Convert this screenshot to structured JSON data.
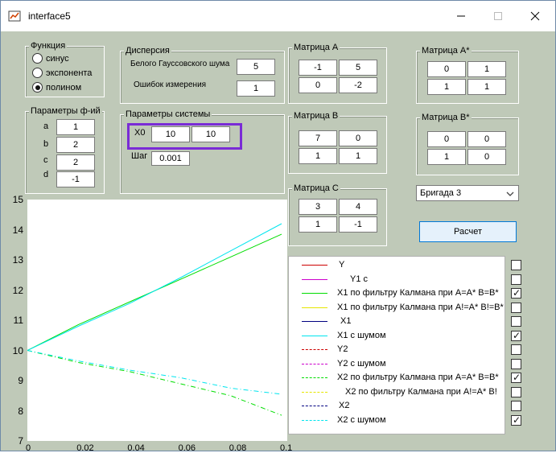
{
  "window": {
    "title": "interface5"
  },
  "function_panel": {
    "title": "Функция",
    "options": [
      {
        "label": "синус",
        "selected": false
      },
      {
        "label": "экспонента",
        "selected": false
      },
      {
        "label": "полином",
        "selected": true
      }
    ]
  },
  "dispersion_panel": {
    "title": "Дисперсия",
    "white_noise_label": "Белого Гауссовского шума",
    "white_noise_value": "5",
    "measure_error_label": "Ошибок измерения",
    "measure_error_value": "1"
  },
  "func_params_panel": {
    "title": "Параметры ф-ий",
    "params": [
      {
        "name": "a",
        "value": "1"
      },
      {
        "name": "b",
        "value": "2"
      },
      {
        "name": "c",
        "value": "2"
      },
      {
        "name": "d",
        "value": "-1"
      }
    ]
  },
  "system_params_panel": {
    "title": "Параметры системы",
    "x0_label": "X0",
    "x0_values": [
      "10",
      "10"
    ],
    "step_label": "Шаг",
    "step_value": "0.001"
  },
  "matrix_a": {
    "title": "Матрица A",
    "cells": [
      "-1",
      "5",
      "0",
      "-2"
    ]
  },
  "matrix_b": {
    "title": "Матрица B",
    "cells": [
      "7",
      "0",
      "1",
      "1"
    ]
  },
  "matrix_c": {
    "title": "Матрица C",
    "cells": [
      "3",
      "4",
      "1",
      "-1"
    ]
  },
  "matrix_a_star": {
    "title": "Матрица A*",
    "cells": [
      "0",
      "1",
      "1",
      "1"
    ]
  },
  "matrix_b_star": {
    "title": "Матрица B*",
    "cells": [
      "0",
      "0",
      "1",
      "0"
    ]
  },
  "brigade_select": {
    "value": "Бригада 3"
  },
  "calc_button": {
    "label": "Расчет"
  },
  "legend": [
    {
      "label": "Y",
      "color": "#cc0000",
      "style": "solid",
      "checked": false
    },
    {
      "label": "Y1 c",
      "color": "#cc00cc",
      "style": "solid",
      "checked": false
    },
    {
      "label": "X1 по фильтру Калмана при A=A* B=B*",
      "color": "#00dd00",
      "style": "solid",
      "checked": true
    },
    {
      "label": "X1 по фильтру Калмана при A!=A* B!=B*",
      "color": "#e6e600",
      "style": "solid",
      "checked": false
    },
    {
      "label": "X1",
      "color": "#000080",
      "style": "solid",
      "checked": false
    },
    {
      "label": "X1 с шумом",
      "color": "#00e5ee",
      "style": "solid",
      "checked": true
    },
    {
      "label": "Y2",
      "color": "#cc0000",
      "style": "dashed",
      "checked": false
    },
    {
      "label": "Y2 с шумом",
      "color": "#cc00cc",
      "style": "dashed",
      "checked": false
    },
    {
      "label": "X2 по фильтру Калмана при A=A* B=B*",
      "color": "#00dd00",
      "style": "dashed",
      "checked": true
    },
    {
      "label": "X2 по фильтру Калмана при A!=A* B!",
      "color": "#e6e600",
      "style": "dashed",
      "checked": false
    },
    {
      "label": "X2",
      "color": "#000080",
      "style": "dashed",
      "checked": false
    },
    {
      "label": "X2 с шумом",
      "color": "#00e5ee",
      "style": "dashed",
      "checked": true
    }
  ],
  "chart_data": {
    "type": "line",
    "ylim": [
      7,
      15
    ],
    "xlim": [
      0,
      0.1
    ],
    "yticks": [
      "15",
      "14",
      "13",
      "12",
      "11",
      "10",
      "9",
      "8",
      "7"
    ],
    "xticks": [
      "0",
      "0.02",
      "0.04",
      "0.06",
      "0.08",
      "0.1"
    ],
    "series": [
      {
        "name": "X1 по фильтру Калмана при A=A* B=B*",
        "color": "#00dd00",
        "style": "solid",
        "x": [
          0,
          0.02,
          0.04,
          0.06,
          0.08,
          0.1
        ],
        "y": [
          10,
          10.85,
          11.6,
          12.35,
          13.1,
          13.85
        ]
      },
      {
        "name": "X1 с шумом",
        "color": "#00e5ee",
        "style": "solid",
        "x": [
          0,
          0.02,
          0.04,
          0.06,
          0.08,
          0.1
        ],
        "y": [
          10,
          10.8,
          11.55,
          12.4,
          13.3,
          14.2
        ]
      },
      {
        "name": "X2 по фильтру Калмана при A=A* B=B*",
        "color": "#00dd00",
        "style": "dashdot",
        "x": [
          0,
          0.02,
          0.04,
          0.06,
          0.08,
          0.1
        ],
        "y": [
          10,
          9.6,
          9.3,
          8.9,
          8.5,
          7.85
        ]
      },
      {
        "name": "X2 с шумом",
        "color": "#00e5ee",
        "style": "dashdot",
        "x": [
          0,
          0.02,
          0.04,
          0.06,
          0.08,
          0.1
        ],
        "y": [
          10,
          9.65,
          9.35,
          9.1,
          8.75,
          8.55
        ]
      }
    ]
  }
}
